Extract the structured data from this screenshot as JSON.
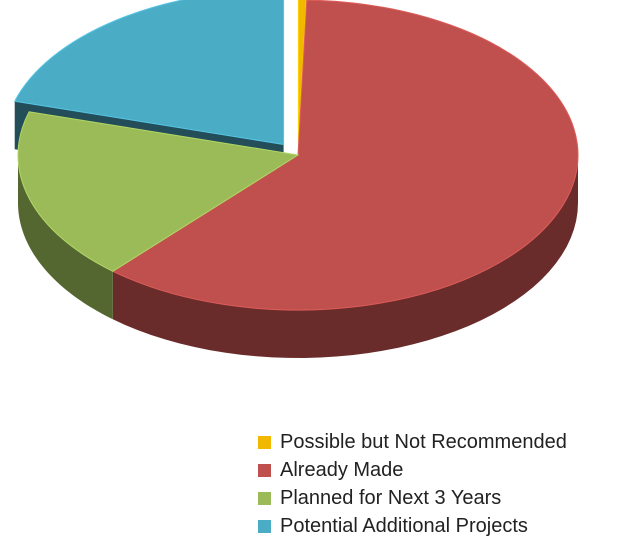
{
  "chart_data": {
    "type": "pie",
    "style": "3d-exploded",
    "title": "",
    "legend_position": "bottom-right",
    "slices": [
      {
        "label": "Possible but Not Recommended",
        "value": 0.5,
        "color": "#f2b800",
        "exploded": true
      },
      {
        "label": "Already Made",
        "value": 61.0,
        "color": "#c0504d",
        "exploded": false
      },
      {
        "label": "Planned for Next 3 Years",
        "value": 18.0,
        "color": "#9bbb59",
        "exploded": false
      },
      {
        "label": "Potential Additional Projects",
        "value": 20.5,
        "color": "#4bacc6",
        "exploded": true
      }
    ]
  }
}
